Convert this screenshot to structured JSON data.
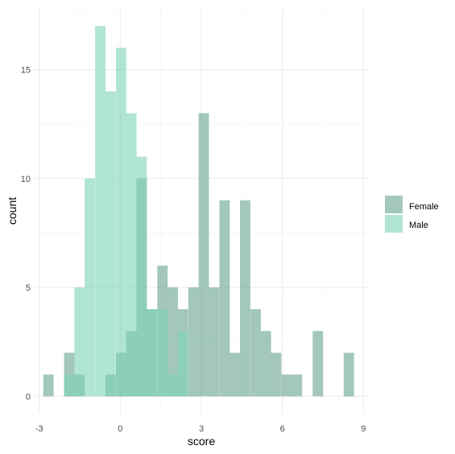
{
  "chart_data": {
    "type": "histogram",
    "xlabel": "score",
    "ylabel": "count",
    "x_ticks": [
      -3,
      0,
      3,
      6,
      9
    ],
    "y_ticks": [
      0,
      5,
      10,
      15
    ],
    "xlim": [
      -3.2,
      9.2
    ],
    "ylim": [
      -0.8,
      17.9
    ],
    "bin_width": 0.383,
    "grid": true,
    "legend_position": "right",
    "series": [
      {
        "name": "Female",
        "color": "#66a38a",
        "bin_starts": [
          -2.85,
          -2.08,
          -1.7,
          -0.55,
          -0.16,
          0.22,
          0.6,
          0.98,
          1.37,
          1.75,
          2.13,
          2.52,
          2.9,
          3.28,
          3.67,
          4.05,
          4.43,
          4.82,
          5.2,
          5.58,
          5.97,
          6.35,
          7.12,
          8.27
        ],
        "values": [
          1,
          2,
          1,
          1,
          2,
          3,
          10,
          4,
          6,
          5,
          4,
          5,
          13,
          5,
          9,
          2,
          9,
          4,
          3,
          2,
          1,
          1,
          3,
          2
        ]
      },
      {
        "name": "Male",
        "color": "#7dd4b5",
        "bin_starts": [
          -2.08,
          -1.7,
          -1.32,
          -0.93,
          -0.55,
          -0.16,
          0.22,
          0.6,
          0.98,
          1.37,
          1.75,
          2.13
        ],
        "values": [
          1,
          5,
          10,
          17,
          14,
          16,
          13,
          11,
          4,
          4,
          1,
          3
        ]
      }
    ]
  }
}
